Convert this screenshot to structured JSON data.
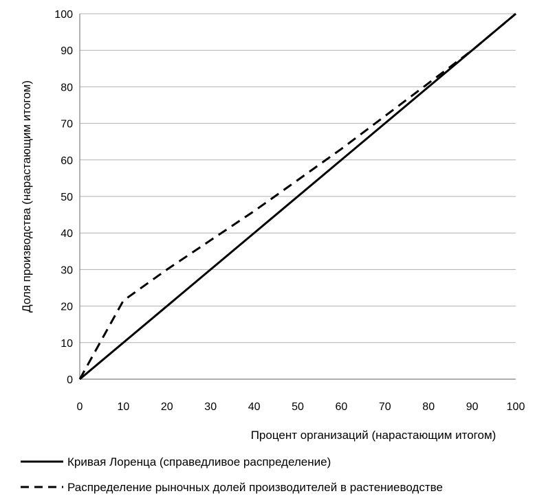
{
  "chart_data": {
    "type": "line",
    "xlabel": "Процент организаций (нарастающим итогом)",
    "ylabel": "Доля производства (нарастающим итогом)",
    "xlim": [
      0,
      100
    ],
    "ylim": [
      0,
      100
    ],
    "x_ticks": [
      "0",
      "10",
      "20",
      "30",
      "40",
      "50",
      "60",
      "70",
      "80",
      "90",
      "100"
    ],
    "y_ticks": [
      "0",
      "10",
      "20",
      "30",
      "40",
      "50",
      "60",
      "70",
      "80",
      "90",
      "100"
    ],
    "grid": "horizontal",
    "legend_position": "bottom",
    "series": [
      {
        "name": "Кривая Лоренца (справедливое распределение)",
        "style": "solid",
        "color": "#000000",
        "x": [
          0,
          100
        ],
        "y": [
          0,
          100
        ]
      },
      {
        "name": "Распределение рыночных долей производителей в растениеводстве",
        "style": "dashed",
        "color": "#000000",
        "x": [
          0,
          10,
          20,
          30,
          40,
          50,
          60,
          70,
          80,
          90,
          100
        ],
        "y": [
          0,
          21.5,
          30,
          38,
          46,
          54.5,
          63,
          72,
          81,
          90,
          100
        ]
      }
    ]
  }
}
